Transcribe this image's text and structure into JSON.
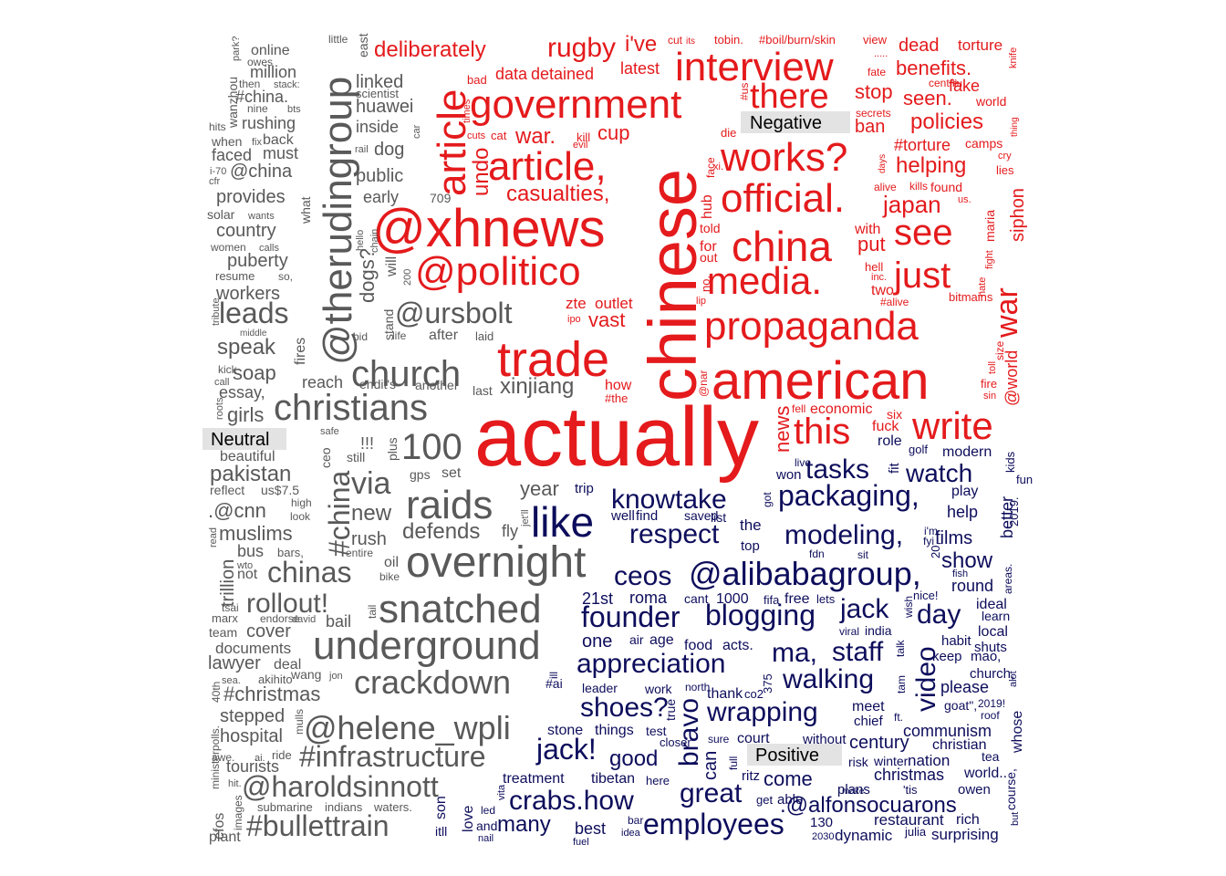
{
  "colors": {
    "negative": "#e41a1c",
    "neutral": "#595959",
    "positive": "#0d0d5c"
  },
  "labels": {
    "negative": "Negative",
    "neutral": "Neutral",
    "positive": "Positive"
  },
  "groups": [
    {
      "key": "negative",
      "words": [
        {
          "text": "actually"
        },
        {
          "text": "chinese"
        },
        {
          "text": "american"
        },
        {
          "text": "trade"
        },
        {
          "text": "@xhnews"
        },
        {
          "text": "government"
        },
        {
          "text": "interview"
        },
        {
          "text": "propaganda"
        },
        {
          "text": "official."
        },
        {
          "text": "works?"
        },
        {
          "text": "article,"
        },
        {
          "text": "@politico"
        },
        {
          "text": "china"
        },
        {
          "text": "media."
        },
        {
          "text": "article"
        },
        {
          "text": "write"
        },
        {
          "text": "this"
        },
        {
          "text": "just"
        },
        {
          "text": "see"
        },
        {
          "text": "there"
        },
        {
          "text": "rugby"
        },
        {
          "text": "deliberately"
        },
        {
          "text": "casualties,"
        },
        {
          "text": "war."
        },
        {
          "text": "undo"
        },
        {
          "text": "vast"
        },
        {
          "text": "war"
        },
        {
          "text": "benefits."
        },
        {
          "text": "policies"
        },
        {
          "text": "helping"
        },
        {
          "text": "japan"
        },
        {
          "text": "seen."
        },
        {
          "text": "dead"
        },
        {
          "text": "torture"
        },
        {
          "text": "cup"
        },
        {
          "text": "i've"
        },
        {
          "text": "latest"
        },
        {
          "text": "detained"
        },
        {
          "text": "data"
        },
        {
          "text": "news"
        },
        {
          "text": "siphon"
        },
        {
          "text": "@world"
        },
        {
          "text": "put"
        },
        {
          "text": "stop"
        },
        {
          "text": "ban"
        },
        {
          "text": "fake"
        },
        {
          "text": "#torture"
        },
        {
          "text": "zte"
        },
        {
          "text": "outlet"
        },
        {
          "text": "two"
        },
        {
          "text": "economic"
        },
        {
          "text": "fuck"
        },
        {
          "text": "how"
        },
        {
          "text": "#the"
        },
        {
          "text": "camps"
        },
        {
          "text": "world"
        },
        {
          "text": "bitmains"
        },
        {
          "text": "#alive"
        },
        {
          "text": "hell"
        },
        {
          "text": "inc."
        },
        {
          "text": "maria"
        },
        {
          "text": "fight"
        },
        {
          "text": "hate"
        },
        {
          "text": "size"
        },
        {
          "text": "toll"
        },
        {
          "text": "fire"
        },
        {
          "text": "sin"
        },
        {
          "text": "kill"
        },
        {
          "text": "evil"
        },
        {
          "text": "cat"
        },
        {
          "text": "cuts"
        },
        {
          "text": "times"
        },
        {
          "text": "bad"
        },
        {
          "text": "#us"
        },
        {
          "text": "die"
        },
        {
          "text": "face"
        },
        {
          "text": "xi."
        },
        {
          "text": "hub"
        },
        {
          "text": "told"
        },
        {
          "text": "for"
        },
        {
          "text": "out"
        },
        {
          "text": "no,"
        },
        {
          "text": "lip"
        },
        {
          "text": "@nar"
        },
        {
          "text": "ipo"
        },
        {
          "text": "tobin."
        },
        {
          "text": "#boil/burn/skin"
        },
        {
          "text": "view"
        },
        {
          "text": "cut"
        },
        {
          "text": "its"
        },
        {
          "text": "fate"
        },
        {
          "text": "knife"
        },
        {
          "text": "centre"
        },
        {
          "text": "liu"
        },
        {
          "text": "secrets"
        },
        {
          "text": "thing"
        },
        {
          "text": "cry"
        },
        {
          "text": "lies"
        },
        {
          "text": "days"
        },
        {
          "text": "kills"
        },
        {
          "text": "alive"
        },
        {
          "text": "found"
        },
        {
          "text": "us."
        },
        {
          "text": "with"
        },
        {
          "text": "fell"
        },
        {
          "text": "six"
        },
        {
          "text": "....."
        }
      ]
    },
    {
      "key": "neutral",
      "words": [
        {
          "text": "@therudingroup"
        },
        {
          "text": "christians"
        },
        {
          "text": "overnight"
        },
        {
          "text": "snatched"
        },
        {
          "text": "underground"
        },
        {
          "text": "church"
        },
        {
          "text": "raids"
        },
        {
          "text": "@helene_wpli"
        },
        {
          "text": "crackdown"
        },
        {
          "text": "#infrastructure"
        },
        {
          "text": "@haroldsinnott"
        },
        {
          "text": "#bullettrain"
        },
        {
          "text": "@ursbolt"
        },
        {
          "text": "#china"
        },
        {
          "text": "100"
        },
        {
          "text": "chinas"
        },
        {
          "text": "via"
        },
        {
          "text": "rollout!"
        },
        {
          "text": "defends"
        },
        {
          "text": "leads"
        },
        {
          "text": "xinjiang"
        },
        {
          "text": "pakistan"
        },
        {
          "text": "speak"
        },
        {
          "text": "muslims"
        },
        {
          "text": "new"
        },
        {
          "text": "girls"
        },
        {
          "text": "year"
        },
        {
          "text": "dogs?"
        },
        {
          "text": "essay,"
        },
        {
          "text": "soap"
        },
        {
          "text": "huawei"
        },
        {
          "text": "linked"
        },
        {
          "text": "inside"
        },
        {
          "text": "public"
        },
        {
          "text": "dog"
        },
        {
          "text": "early"
        },
        {
          "text": "provides"
        },
        {
          "text": "country"
        },
        {
          "text": "puberty"
        },
        {
          "text": "workers"
        },
        {
          "text": "@china"
        },
        {
          "text": "faced"
        },
        {
          "text": "must"
        },
        {
          "text": "rushing"
        },
        {
          "text": "back"
        },
        {
          "text": "#china."
        },
        {
          "text": "million"
        },
        {
          "text": "online"
        },
        {
          "text": "cover"
        },
        {
          "text": "lawyer"
        },
        {
          "text": "deal"
        },
        {
          "text": "#christmas"
        },
        {
          "text": "stepped"
        },
        {
          "text": "hospital"
        },
        {
          "text": "tourists"
        },
        {
          "text": "plant"
        },
        {
          "text": "cfos"
        },
        {
          "text": "images"
        },
        {
          "text": "submarine"
        },
        {
          "text": "indians"
        },
        {
          "text": "waters."
        },
        {
          "text": "bail"
        },
        {
          "text": "rush"
        },
        {
          "text": "bus"
        },
        {
          "text": "not"
        },
        {
          "text": "trillion"
        },
        {
          "text": "oil"
        },
        {
          "text": "bike"
        },
        {
          "text": "documents"
        },
        {
          "text": "team"
        },
        {
          "text": "marx"
        },
        {
          "text": "tsai"
        },
        {
          "text": "endorse"
        },
        {
          "text": "david"
        },
        {
          "text": "wang"
        },
        {
          "text": "jon"
        },
        {
          "text": "akihito"
        },
        {
          "text": "sea."
        },
        {
          "text": "40th"
        },
        {
          "text": "ministerpolls."
        },
        {
          "text": "awe."
        },
        {
          "text": "ai."
        },
        {
          "text": "ride"
        },
        {
          "text": "mulls"
        },
        {
          "text": "hit."
        },
        {
          "text": ".@cnn"
        },
        {
          "text": "beautiful"
        },
        {
          "text": "reflect"
        },
        {
          "text": "us$7.5"
        },
        {
          "text": "high"
        },
        {
          "text": "look"
        },
        {
          "text": "bars,"
        },
        {
          "text": "entire"
        },
        {
          "text": "tail"
        },
        {
          "text": "wto"
        },
        {
          "text": "read"
        },
        {
          "text": "!!!"
        },
        {
          "text": "still"
        },
        {
          "text": "plus"
        },
        {
          "text": "gps"
        },
        {
          "text": "set"
        },
        {
          "text": "fly"
        },
        {
          "text": "jet'll"
        },
        {
          "text": "ceo"
        },
        {
          "text": "safe"
        },
        {
          "text": "fires"
        },
        {
          "text": "reach"
        },
        {
          "text": "endit's"
        },
        {
          "text": "another"
        },
        {
          "text": "last"
        },
        {
          "text": "laid"
        },
        {
          "text": "after"
        },
        {
          "text": "life"
        },
        {
          "text": "bid"
        },
        {
          "text": "stand"
        },
        {
          "text": "will"
        },
        {
          "text": "200"
        },
        {
          "text": "chain"
        },
        {
          "text": "hello"
        },
        {
          "text": "709"
        },
        {
          "text": "car"
        },
        {
          "text": "rail"
        },
        {
          "text": "scientist"
        },
        {
          "text": "east"
        },
        {
          "text": "little"
        },
        {
          "text": "owes"
        },
        {
          "text": "then"
        },
        {
          "text": "stack:"
        },
        {
          "text": "nine"
        },
        {
          "text": "bts"
        },
        {
          "text": "wanzhou"
        },
        {
          "text": "park?"
        },
        {
          "text": "hits"
        },
        {
          "text": "when"
        },
        {
          "text": "fix"
        },
        {
          "text": "i-70"
        },
        {
          "text": "cfr"
        },
        {
          "text": "solar"
        },
        {
          "text": "wants"
        },
        {
          "text": "women"
        },
        {
          "text": "calls"
        },
        {
          "text": "what"
        },
        {
          "text": "resume"
        },
        {
          "text": "so,"
        },
        {
          "text": "tribute"
        },
        {
          "text": "middle"
        },
        {
          "text": "kick"
        },
        {
          "text": "call"
        },
        {
          "text": "roots"
        }
      ]
    },
    {
      "key": "positive",
      "words": [
        {
          "text": "like"
        },
        {
          "text": "@alibabagroup,"
        },
        {
          "text": "blogging"
        },
        {
          "text": "founder"
        },
        {
          "text": "appreciation"
        },
        {
          "text": "packaging,"
        },
        {
          "text": "modeling,"
        },
        {
          "text": "knowtake"
        },
        {
          "text": "respect"
        },
        {
          "text": "ceos"
        },
        {
          "text": "employees"
        },
        {
          "text": "crabs.how"
        },
        {
          "text": "jack!"
        },
        {
          "text": "shoes?"
        },
        {
          "text": "wrapping"
        },
        {
          "text": "walking"
        },
        {
          "text": "great"
        },
        {
          "text": "ma,"
        },
        {
          "text": "staff"
        },
        {
          "text": "video"
        },
        {
          "text": "bravo"
        },
        {
          "text": "jack"
        },
        {
          "text": "day"
        },
        {
          "text": "watch"
        },
        {
          "text": "tasks"
        },
        {
          "text": "many"
        },
        {
          "text": "good"
        },
        {
          "text": "show"
        },
        {
          "text": ".@alfonsocuarons"
        },
        {
          "text": "come"
        },
        {
          "text": "can"
        },
        {
          "text": "one"
        },
        {
          "text": "21st"
        },
        {
          "text": "roma"
        },
        {
          "text": "films"
        },
        {
          "text": "communism"
        },
        {
          "text": "century"
        },
        {
          "text": "christmas"
        },
        {
          "text": "nation"
        },
        {
          "text": "christian"
        },
        {
          "text": "restaurant"
        },
        {
          "text": "rich"
        },
        {
          "text": "dynamic"
        },
        {
          "text": "surprising"
        },
        {
          "text": "best"
        },
        {
          "text": "love"
        },
        {
          "text": "treatment"
        },
        {
          "text": "tibetan"
        },
        {
          "text": "stone"
        },
        {
          "text": "things"
        },
        {
          "text": "test"
        },
        {
          "text": "leader"
        },
        {
          "text": "work"
        },
        {
          "text": "thank"
        },
        {
          "text": "co2"
        },
        {
          "text": "#ai"
        },
        {
          "text": "food"
        },
        {
          "text": "acts."
        },
        {
          "text": "air"
        },
        {
          "text": "age"
        },
        {
          "text": "cant"
        },
        {
          "text": "1000"
        },
        {
          "text": "fifa"
        },
        {
          "text": "free"
        },
        {
          "text": "lets"
        },
        {
          "text": "viral"
        },
        {
          "text": "india"
        },
        {
          "text": "round"
        },
        {
          "text": "help"
        },
        {
          "text": "play"
        },
        {
          "text": "modern"
        },
        {
          "text": "better"
        },
        {
          "text": "fun"
        },
        {
          "text": "kids"
        },
        {
          "text": "2019."
        },
        {
          "text": "ideal"
        },
        {
          "text": "learn"
        },
        {
          "text": "local"
        },
        {
          "text": "habit"
        },
        {
          "text": "shuts"
        },
        {
          "text": "keep"
        },
        {
          "text": "mao,"
        },
        {
          "text": "church,"
        },
        {
          "text": "please"
        },
        {
          "text": "alot"
        },
        {
          "text": "2019!"
        },
        {
          "text": "roof"
        },
        {
          "text": "goat\","
        },
        {
          "text": "whose"
        },
        {
          "text": "meet"
        },
        {
          "text": "chief"
        },
        {
          "text": "ft."
        },
        {
          "text": "tam"
        },
        {
          "text": "risk"
        },
        {
          "text": "winter"
        },
        {
          "text": "tea"
        },
        {
          "text": "plans"
        },
        {
          "text": "make"
        },
        {
          "text": "'tis"
        },
        {
          "text": "world.."
        },
        {
          "text": "owen"
        },
        {
          "text": "course,"
        },
        {
          "text": "but"
        },
        {
          "text": "130"
        },
        {
          "text": "2030"
        },
        {
          "text": "julia"
        },
        {
          "text": "able"
        },
        {
          "text": "get"
        },
        {
          "text": "ritz"
        },
        {
          "text": "full"
        },
        {
          "text": "sure"
        },
        {
          "text": "court"
        },
        {
          "text": "without"
        },
        {
          "text": "closer"
        },
        {
          "text": "here"
        },
        {
          "text": "true"
        },
        {
          "text": "north"
        },
        {
          "text": "375"
        },
        {
          "text": "ill"
        },
        {
          "text": "itll"
        },
        {
          "text": "son"
        },
        {
          "text": "and"
        },
        {
          "text": "nail"
        },
        {
          "text": "led"
        },
        {
          "text": "vita"
        },
        {
          "text": "fuel"
        },
        {
          "text": "idea"
        },
        {
          "text": "bar"
        },
        {
          "text": "trip"
        },
        {
          "text": "well"
        },
        {
          "text": "find"
        },
        {
          "text": "saved"
        },
        {
          "text": "list"
        },
        {
          "text": "the"
        },
        {
          "text": "top"
        },
        {
          "text": "got"
        },
        {
          "text": "won"
        },
        {
          "text": "live"
        },
        {
          "text": "fit"
        },
        {
          "text": "role"
        },
        {
          "text": "golf"
        },
        {
          "text": "20,"
        },
        {
          "text": "i'm"
        },
        {
          "text": "fyi"
        },
        {
          "text": "fish"
        },
        {
          "text": "areas."
        },
        {
          "text": "nice!"
        },
        {
          "text": "wish"
        },
        {
          "text": "talk"
        },
        {
          "text": "fdn"
        },
        {
          "text": "sit"
        },
        {
          "text": "fabricate"
        }
      ]
    }
  ]
}
